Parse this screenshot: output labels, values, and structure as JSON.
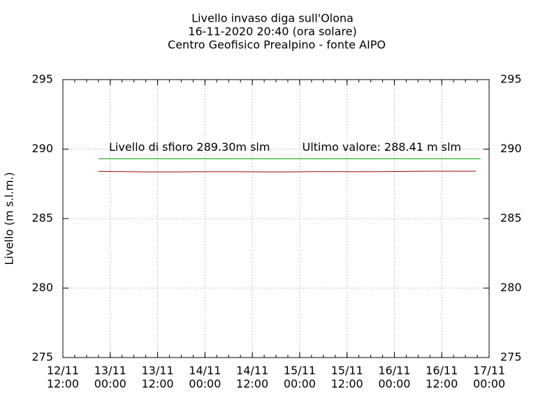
{
  "chart_data": {
    "type": "line",
    "title": "Livello invaso diga sull'Olona",
    "subtitle": "16-11-2020 20:40 (ora solare)",
    "source": "Centro Geofisico Prealpino - fonte AIPO",
    "ylabel": "Livello (m s.l.m.)",
    "annotations": [
      "Livello di sfioro 289.30m slm",
      "Ultimo valore: 288.41 m slm"
    ],
    "ylim": [
      275,
      295
    ],
    "yticks": [
      275,
      280,
      285,
      290,
      295
    ],
    "grid": true,
    "xlim": [
      "12/11 12:00",
      "17/11 00:00"
    ],
    "xticks": [
      {
        "value": "12/11 12:00",
        "label": [
          "12/11",
          "12:00"
        ]
      },
      {
        "value": "13/11 00:00",
        "label": [
          "13/11",
          "00:00"
        ]
      },
      {
        "value": "13/11 12:00",
        "label": [
          "13/11",
          "12:00"
        ]
      },
      {
        "value": "14/11 00:00",
        "label": [
          "14/11",
          "00:00"
        ]
      },
      {
        "value": "14/11 12:00",
        "label": [
          "14/11",
          "12:00"
        ]
      },
      {
        "value": "15/11 00:00",
        "label": [
          "15/11",
          "00:00"
        ]
      },
      {
        "value": "15/11 12:00",
        "label": [
          "15/11",
          "12:00"
        ]
      },
      {
        "value": "16/11 00:00",
        "label": [
          "16/11",
          "00:00"
        ]
      },
      {
        "value": "16/11 12:00",
        "label": [
          "16/11",
          "12:00"
        ]
      },
      {
        "value": "17/11 00:00",
        "label": [
          "17/11",
          "00:00"
        ]
      }
    ],
    "series": [
      {
        "color": "#00a000",
        "x": [
          "12/11 21:00",
          "16/11 21:50"
        ],
        "values": [
          289.3,
          289.3
        ]
      },
      {
        "color": "#a00000",
        "x": [
          "12/11 21:00",
          "13/11 03:00",
          "13/11 09:00",
          "13/11 15:00",
          "13/11 21:00",
          "14/11 03:00",
          "14/11 09:00",
          "14/11 15:00",
          "14/11 21:00",
          "15/11 03:00",
          "15/11 09:00",
          "15/11 15:00",
          "15/11 21:00",
          "16/11 03:00",
          "16/11 09:00",
          "16/11 15:00",
          "16/11 20:40"
        ],
        "values": [
          288.4,
          288.38,
          288.36,
          288.36,
          288.37,
          288.37,
          288.37,
          288.36,
          288.36,
          288.38,
          288.38,
          288.37,
          288.38,
          288.4,
          288.41,
          288.41,
          288.41
        ]
      }
    ]
  }
}
